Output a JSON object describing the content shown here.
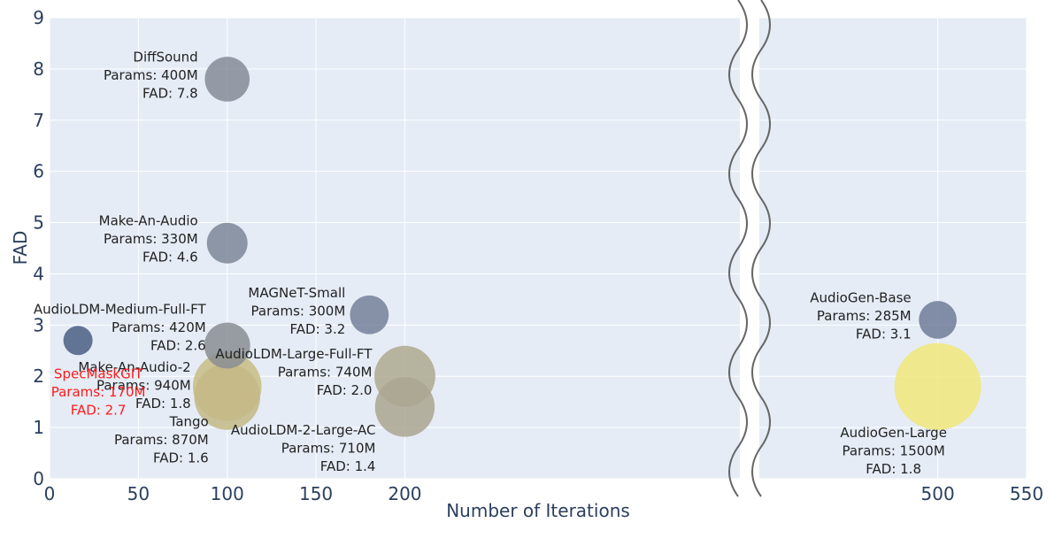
{
  "chart_data": {
    "type": "scatter",
    "title": "",
    "xlabel": "Number of Iterations",
    "ylabel": "FAD",
    "xlim": [
      0,
      550
    ],
    "ylim": [
      0,
      9
    ],
    "x_ticks": [
      0,
      50,
      100,
      150,
      200,
      500,
      550
    ],
    "y_ticks": [
      0,
      1,
      2,
      3,
      4,
      5,
      6,
      7,
      8,
      9
    ],
    "x_axis_break": {
      "from": 200,
      "to": 500
    },
    "size_encodes": "Params (M)",
    "color_encodes": "Params (M)",
    "points": [
      {
        "name": "DiffSound",
        "x": 100,
        "y": 7.8,
        "params": 400,
        "params_text": "Params: 400M",
        "fad_text": "FAD: 7.8",
        "color": "#868c96"
      },
      {
        "name": "Make-An-Audio",
        "x": 100,
        "y": 4.6,
        "params": 330,
        "params_text": "Params: 330M",
        "fad_text": "FAD: 4.6",
        "color": "#7e8798"
      },
      {
        "name": "AudioLDM-Medium-Full-FT",
        "x": 100,
        "y": 2.6,
        "params": 420,
        "params_text": "Params: 420M",
        "fad_text": "FAD: 2.6",
        "color": "#8a8e93"
      },
      {
        "name": "Make-An-Audio-2",
        "x": 100,
        "y": 1.8,
        "params": 940,
        "params_text": "Params: 940M",
        "fad_text": "FAD: 1.8",
        "color": "#c8bd84"
      },
      {
        "name": "Tango",
        "x": 100,
        "y": 1.6,
        "params": 870,
        "params_text": "Params: 870M",
        "fad_text": "FAD: 1.6",
        "color": "#c3b986"
      },
      {
        "name": "SpecMaskGIT",
        "x": 16,
        "y": 2.7,
        "params": 170,
        "params_text": "Params: 170M",
        "fad_text": "FAD: 2.7",
        "color": "#4b5f82",
        "highlight": true
      },
      {
        "name": "MAGNeT-Small",
        "x": 180,
        "y": 3.2,
        "params": 300,
        "params_text": "Params: 300M",
        "fad_text": "FAD: 3.2",
        "color": "#75819a"
      },
      {
        "name": "AudioLDM-Large-Full-FT",
        "x": 200,
        "y": 2.0,
        "params": 740,
        "params_text": "Params: 740M",
        "fad_text": "FAD: 2.0",
        "color": "#aea98e"
      },
      {
        "name": "AudioLDM-2-Large-AC",
        "x": 200,
        "y": 1.4,
        "params": 710,
        "params_text": "Params: 710M",
        "fad_text": "FAD: 1.4",
        "color": "#aaa690"
      },
      {
        "name": "AudioGen-Base",
        "x": 500,
        "y": 3.1,
        "params": 285,
        "params_text": "Params: 285M",
        "fad_text": "FAD: 3.1",
        "color": "#707d98"
      },
      {
        "name": "AudioGen-Large",
        "x": 500,
        "y": 1.8,
        "params": 1500,
        "params_text": "Params: 1500M",
        "fad_text": "FAD: 1.8",
        "color": "#f1e87a"
      }
    ]
  }
}
